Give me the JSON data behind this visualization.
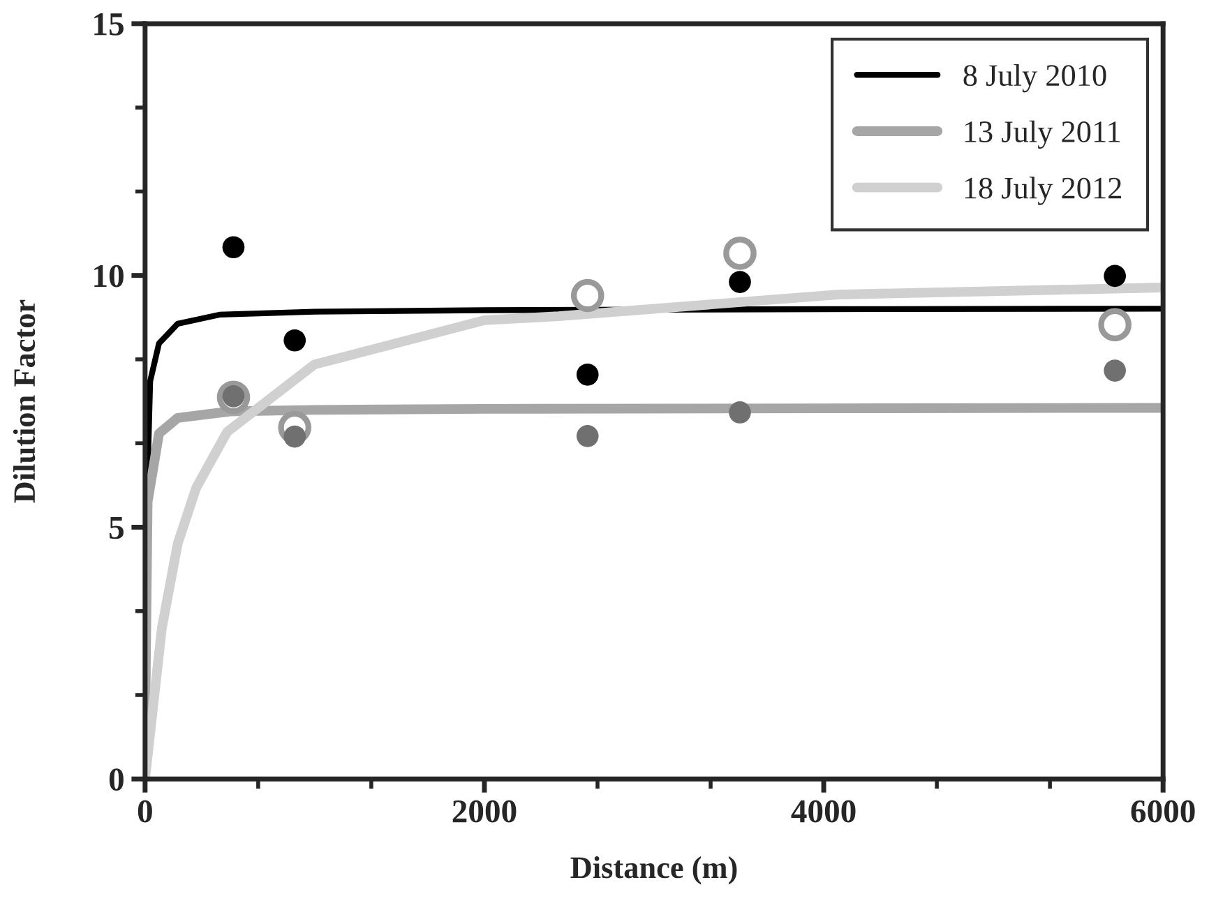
{
  "chart_data": {
    "type": "line",
    "xlabel": "Distance (m)",
    "ylabel": "Dilution Factor",
    "xlim": [
      0,
      6000
    ],
    "xticks": [
      0,
      2000,
      4000,
      6000
    ],
    "ylim": [
      0,
      15
    ],
    "yticks": [
      0,
      5,
      10,
      15
    ],
    "grid": false,
    "legend": "top right",
    "marker": "none",
    "series": [
      {
        "name": "8 July 2010",
        "color": "#000000",
        "x": [
          0,
          10,
          30,
          82,
          192,
          438,
          1000,
          2000,
          4000,
          6000
        ],
        "values": [
          0,
          5.4,
          7.9,
          8.65,
          9.04,
          9.22,
          9.28,
          9.31,
          9.33,
          9.34
        ]
      },
      {
        "name": "13 July 2011",
        "color": "#a6a6a6",
        "x": [
          0,
          15,
          82,
          192,
          500,
          1000,
          2000,
          4000,
          6000
        ],
        "values": [
          0.9,
          5.5,
          6.86,
          7.17,
          7.3,
          7.33,
          7.35,
          7.36,
          7.37
        ]
      },
      {
        "name": "18 July 2012",
        "color": "#d0d0d0",
        "x": [
          0,
          99,
          192,
          301,
          483,
          997,
          2000,
          2437,
          4082,
          6000
        ],
        "values": [
          0,
          3.0,
          4.67,
          5.78,
          6.89,
          8.23,
          9.11,
          9.19,
          9.62,
          9.76
        ]
      },
      {
        "color": "#000000",
        "type": "scatter",
        "marker": "circle",
        "x": [
          521,
          882,
          2608,
          3506,
          5716
        ],
        "values": [
          10.56,
          8.71,
          8.03,
          9.87,
          9.99
        ]
      },
      {
        "color": "#707070",
        "type": "scatter",
        "marker": "circle",
        "x": [
          521,
          882,
          2608,
          3506,
          5716
        ],
        "values": [
          7.6,
          6.8,
          6.81,
          7.28,
          8.11
        ]
      },
      {
        "color": "#999999",
        "type": "scatter",
        "marker": "circle",
        "x": [
          521,
          882,
          2608,
          3506,
          5716
        ],
        "values": [
          7.58,
          6.98,
          9.6,
          10.44,
          9.02
        ]
      }
    ]
  }
}
